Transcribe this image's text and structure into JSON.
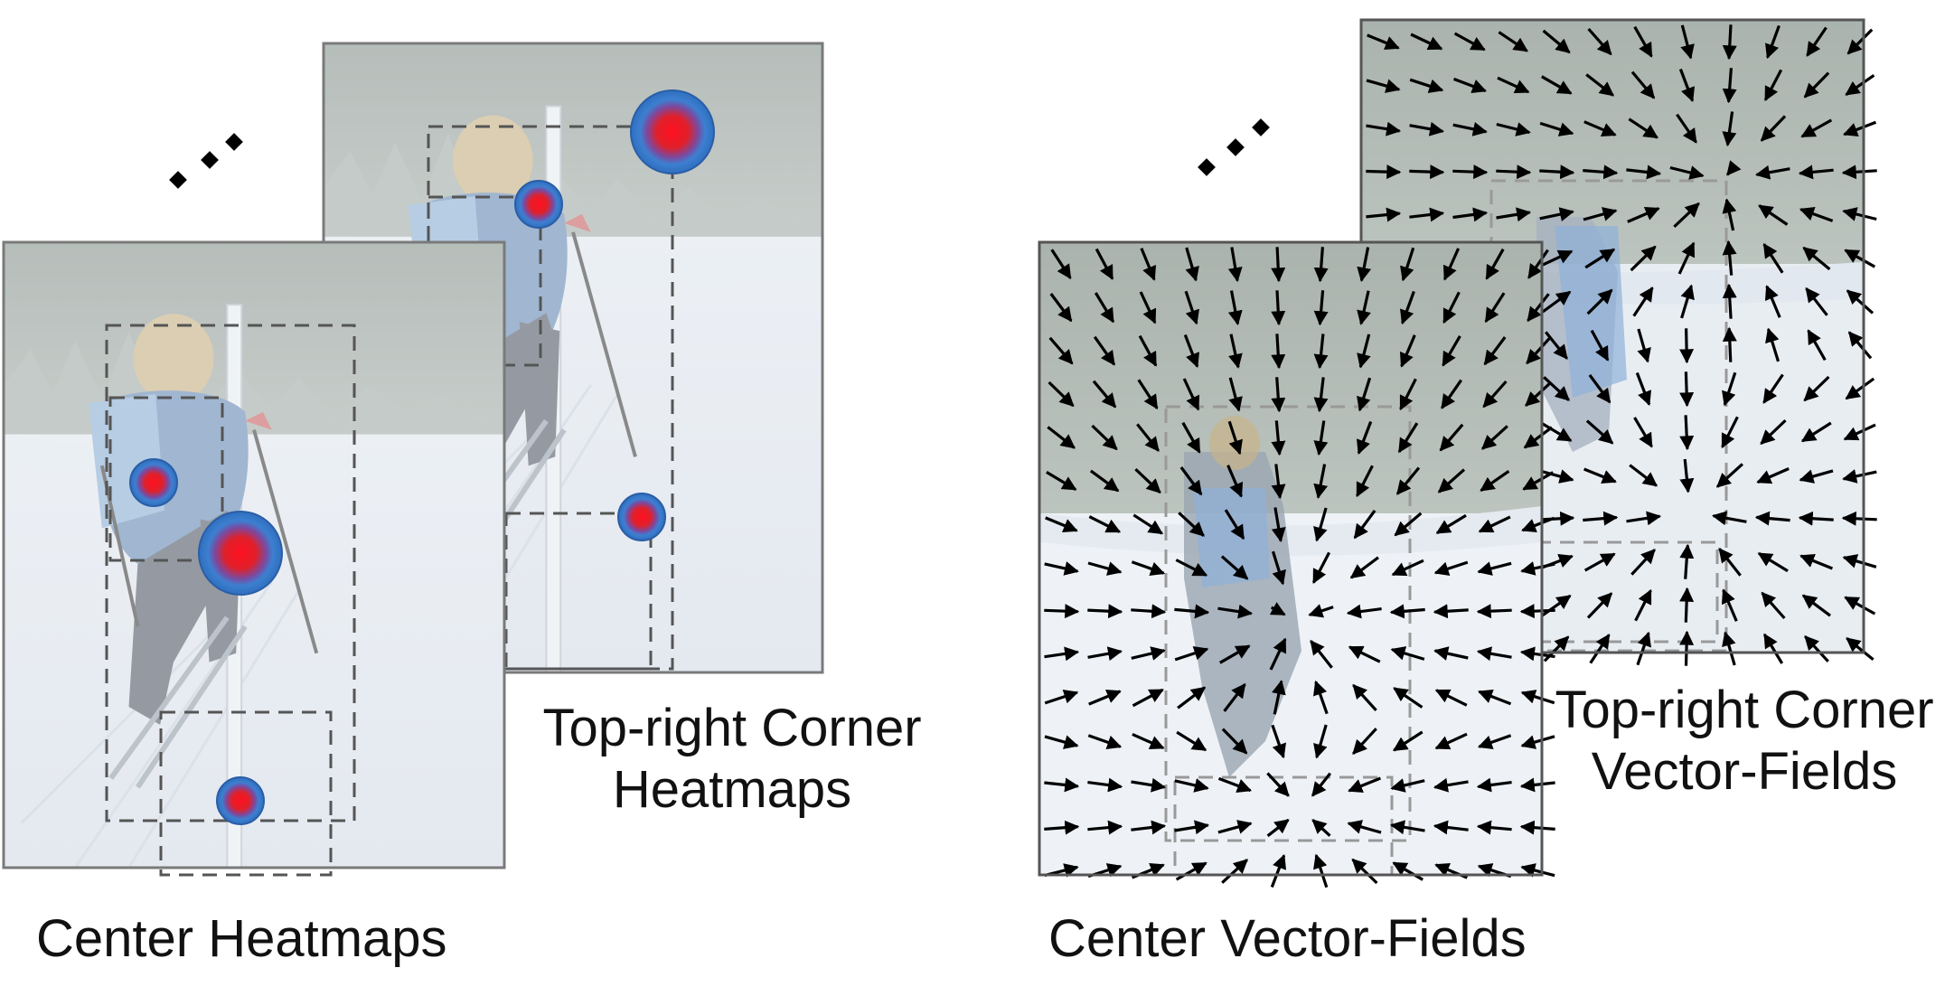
{
  "captions": {
    "center_heatmaps": "Center Heatmaps",
    "topright_heatmaps_line1": "Top-right Corner",
    "topright_heatmaps_line2": "Heatmaps",
    "center_vector_fields": "Center Vector-Fields",
    "topright_vf_line1": "Top-right Corner",
    "topright_vf_line2": "Vector-Fields"
  },
  "colors": {
    "blob_outer": "#3a78c8",
    "blob_inner": "#e0202a",
    "arrow": "#000000",
    "dashed_box": "#555555",
    "frame": "#7a7a7a"
  }
}
